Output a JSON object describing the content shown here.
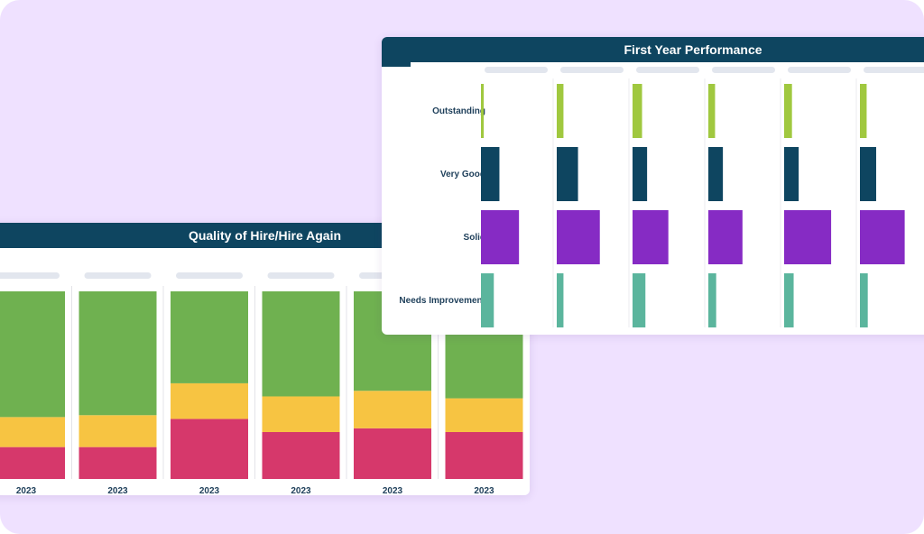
{
  "chart_data": [
    {
      "type": "bar",
      "stacked": true,
      "normalized": true,
      "title": "Quality of Hire/Hire Again",
      "categories": [
        "2023",
        "2023",
        "2023",
        "2023",
        "2023",
        "2023"
      ],
      "series": [
        {
          "values": [
            0.17,
            0.17,
            0.32,
            0.25,
            0.27,
            0.25
          ],
          "color": "#d6386b"
        },
        {
          "values": [
            0.16,
            0.17,
            0.19,
            0.19,
            0.2,
            0.18
          ],
          "color": "#f7c442"
        },
        {
          "values": [
            0.67,
            0.66,
            0.49,
            0.56,
            0.53,
            0.57
          ],
          "color": "#6fb150"
        }
      ],
      "ylim": [
        0,
        1
      ],
      "grid": false,
      "legend": "none"
    },
    {
      "type": "bar",
      "orientation": "horizontal",
      "title": "First Year Performance",
      "rows": [
        "Outstanding",
        "Very Good",
        "Solid",
        "Needs Improvement"
      ],
      "row_colors": [
        "#a0c83f",
        "#0e4560",
        "#862bc4",
        "#5bb59d"
      ],
      "panels": [
        {
          "values": [
            0.05,
            0.33,
            0.68,
            0.23
          ]
        },
        {
          "values": [
            0.12,
            0.38,
            0.77,
            0.12
          ]
        },
        {
          "values": [
            0.17,
            0.26,
            0.64,
            0.23
          ]
        },
        {
          "values": [
            0.12,
            0.26,
            0.61,
            0.14
          ]
        },
        {
          "values": [
            0.14,
            0.26,
            0.84,
            0.17
          ]
        },
        {
          "values": [
            0.12,
            0.29,
            0.8,
            0.14
          ]
        }
      ],
      "xlim": [
        0,
        1
      ],
      "grid": false,
      "legend": "none"
    }
  ]
}
